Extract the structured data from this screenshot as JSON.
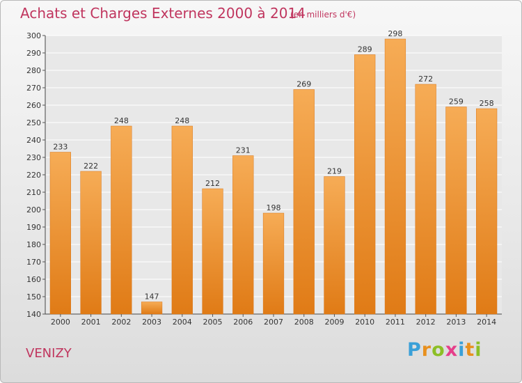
{
  "header": {
    "title": "Achats et Charges Externes 2000 à 2014",
    "subtitle": "(en milliers d'€)"
  },
  "footer": {
    "commune": "VENIZY",
    "logo_letters": [
      "P",
      "r",
      "o",
      "x",
      "i",
      "t",
      "i"
    ],
    "logo_colors": [
      "#3aa0d8",
      "#e8901e",
      "#8cbf26",
      "#e63e8a",
      "#3aa0d8",
      "#e8901e",
      "#8cbf26"
    ]
  },
  "chart_data": {
    "type": "bar",
    "title": "Achats et Charges Externes 2000 à 2014",
    "subtitle": "(en milliers d'€)",
    "categories": [
      "2000",
      "2001",
      "2002",
      "2003",
      "2004",
      "2005",
      "2006",
      "2007",
      "2008",
      "2009",
      "2010",
      "2011",
      "2012",
      "2013",
      "2014"
    ],
    "values": [
      233,
      222,
      248,
      147,
      248,
      212,
      231,
      198,
      269,
      219,
      289,
      298,
      272,
      259,
      258
    ],
    "ylim": [
      140,
      300
    ],
    "yticks": [
      140,
      150,
      160,
      170,
      180,
      190,
      200,
      210,
      220,
      230,
      240,
      250,
      260,
      270,
      280,
      290,
      300
    ],
    "grid": true,
    "bar_color": "#f0922a",
    "bar_color_light": "#f6ac56",
    "bar_color_dark": "#e07b16"
  }
}
